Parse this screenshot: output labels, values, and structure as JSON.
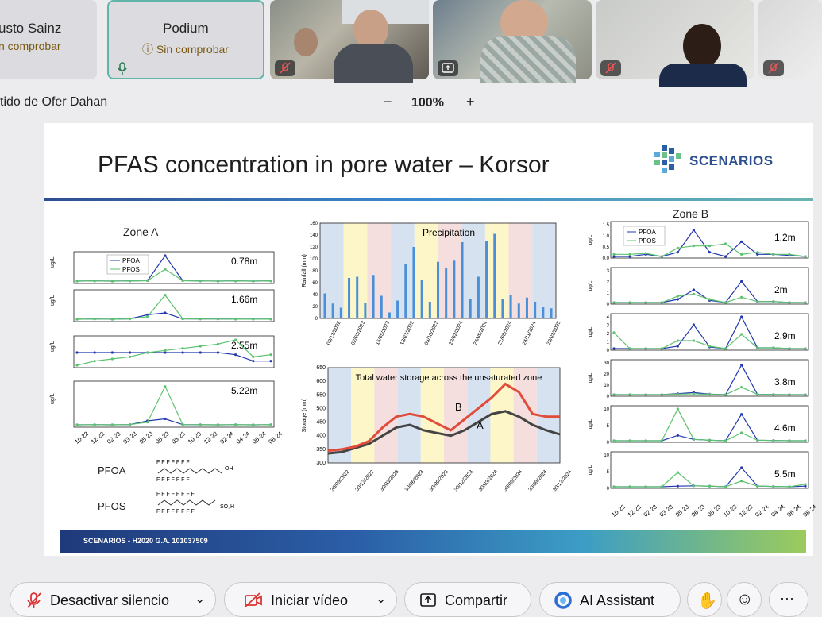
{
  "participants": [
    {
      "name": "usto Sainz",
      "status": "n comprobar"
    },
    {
      "name": "Podium",
      "status": "Sin comprobar"
    }
  ],
  "share": {
    "owner_label": "tido de Ofer Dahan",
    "zoom": "100%",
    "zoom_out": "−",
    "zoom_in": "+"
  },
  "slide": {
    "title": "PFAS concentration in pore water – Korsor",
    "logo": "SCENARIOS",
    "footer": "SCENARIOS -  H2020 G.A. 101037509",
    "zone_a": {
      "title": "Zone A",
      "depths": [
        "0.78m",
        "1.66m",
        "2.55m",
        "5.22m"
      ],
      "x_ticks": [
        "10-22",
        "12-22",
        "02-23",
        "03-23",
        "05-23",
        "06-23",
        "08-23",
        "10-23",
        "12-23",
        "02-24",
        "04-24",
        "06-24",
        "08-24"
      ]
    },
    "zone_b": {
      "title": "Zone B",
      "depths": [
        "1.2m",
        "2m",
        "2.9m",
        "3.8m",
        "4.6m",
        "5.5m"
      ],
      "x_ticks": [
        "10-22",
        "12-22",
        "02-23",
        "03-23",
        "05-23",
        "06-23",
        "08-23",
        "10-23",
        "12-23",
        "02-24",
        "04-24",
        "06-24",
        "08-24"
      ]
    },
    "legend": {
      "pfoa": "PFOA",
      "pfos": "PFOS"
    },
    "ylabel": "ug/L",
    "chem_labels": [
      "PFOA",
      "PFOS"
    ],
    "precip": {
      "title": "Precipitation",
      "ylabel": "Rainfall (mm)",
      "yticks": [
        "0",
        "20",
        "40",
        "60",
        "80",
        "100",
        "120",
        "140",
        "160"
      ],
      "dates": [
        "08/12/2022",
        "02/03/2023",
        "15/05/2023",
        "13/07/2023",
        "05/10/2023",
        "22/02/2024",
        "24/05/2024",
        "21/08/2024",
        "24/11/2024",
        "23/02/2025"
      ]
    },
    "storage": {
      "title": "Total water storage across the unsaturated zone",
      "ylabel": "Storage (mm)",
      "yticks": [
        "300",
        "350",
        "400",
        "450",
        "500",
        "550",
        "600",
        "650"
      ],
      "dates": [
        "30/09/2022",
        "30/12/2022",
        "30/03/2023",
        "30/06/2023",
        "30/09/2023",
        "30/12/2023",
        "30/03/2024",
        "30/06/2024",
        "30/09/2024",
        "30/12/2024"
      ],
      "mark_a": "A",
      "mark_b": "B"
    }
  },
  "chart_data": [
    {
      "type": "bar",
      "title": "Precipitation",
      "ylabel": "Rainfall (mm)",
      "ylim": [
        0,
        160
      ],
      "values": [
        42,
        25,
        18,
        68,
        70,
        26,
        73,
        38,
        10,
        30,
        92,
        120,
        65,
        28,
        95,
        85,
        97,
        128,
        32,
        70,
        130,
        142,
        33,
        40,
        25,
        35,
        28,
        20,
        17
      ]
    },
    {
      "type": "line",
      "title": "Total water storage across the unsaturated zone",
      "ylabel": "Storage (mm)",
      "ylim": [
        300,
        650
      ],
      "series": [
        {
          "name": "A",
          "values": [
            335,
            340,
            355,
            370,
            400,
            430,
            440,
            420,
            410,
            400,
            420,
            450,
            480,
            490,
            470,
            440,
            420,
            405
          ]
        },
        {
          "name": "B",
          "values": [
            345,
            350,
            360,
            380,
            430,
            470,
            480,
            470,
            445,
            420,
            460,
            500,
            540,
            590,
            560,
            480,
            470,
            470
          ]
        }
      ]
    }
  ],
  "toolbar": {
    "mute": "Desactivar silencio",
    "video": "Iniciar vídeo",
    "share": "Compartir",
    "ai": "AI Assistant",
    "more": "···"
  }
}
